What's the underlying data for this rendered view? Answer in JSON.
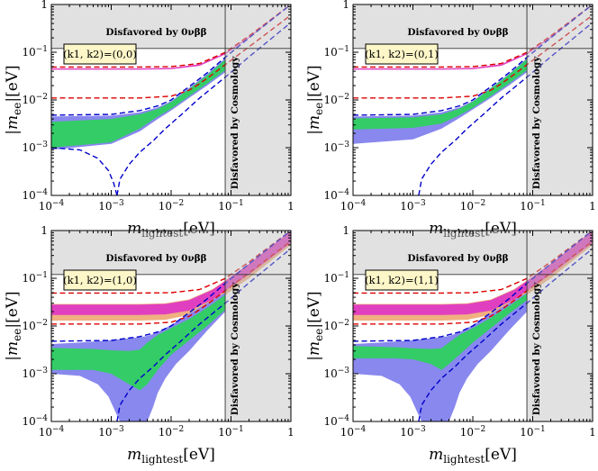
{
  "chart_data": [
    {
      "type": "area",
      "panel_label": "(k1, k2)=(0,0)",
      "xlabel": "m_lightest[eV]",
      "ylabel": "|m_ee|[eV]",
      "xscale": "log",
      "yscale": "log",
      "xlim": [
        0.0001,
        1
      ],
      "ylim": [
        0.0001,
        1
      ],
      "x_ticks": [
        "10^-4",
        "10^-3",
        "10^-2",
        "10^-1",
        "1"
      ],
      "y_ticks": [
        "10^-4",
        "10^-3",
        "10^-2",
        "10^-1",
        "1"
      ],
      "annotations": [
        "Disfavored by 0νββ",
        "Disfavored by Cosmology"
      ],
      "excluded_mee_above": 0.12,
      "excluded_mlightest_above": 0.08,
      "bands": [
        {
          "color": "#e040c0",
          "x": [
            0.0001,
            0.003,
            0.01,
            0.03,
            0.08,
            0.2,
            1
          ],
          "lower": [
            0.043,
            0.043,
            0.044,
            0.052,
            0.09,
            0.2,
            1.0
          ],
          "upper": [
            0.046,
            0.046,
            0.047,
            0.056,
            0.096,
            0.21,
            1.0
          ]
        },
        {
          "color": "#8888ee",
          "x": [
            0.0001,
            0.001,
            0.003,
            0.006,
            0.01,
            0.02,
            0.04,
            0.08
          ],
          "lower": [
            0.0009,
            0.0012,
            0.0022,
            0.004,
            0.006,
            0.011,
            0.02,
            0.038
          ],
          "upper": [
            0.0045,
            0.0047,
            0.0055,
            0.007,
            0.0095,
            0.018,
            0.035,
            0.075
          ]
        },
        {
          "color": "#33cc66",
          "x": [
            0.0001,
            0.001,
            0.003,
            0.006,
            0.01,
            0.02,
            0.04,
            0.08
          ],
          "lower": [
            0.001,
            0.0013,
            0.0025,
            0.0045,
            0.0065,
            0.012,
            0.022,
            0.042
          ],
          "upper": [
            0.0035,
            0.004,
            0.005,
            0.0065,
            0.009,
            0.017,
            0.033,
            0.07
          ]
        }
      ],
      "dashed_curves": [
        {
          "color": "#dd0000",
          "x": [
            0.0001,
            0.003,
            0.01,
            0.03,
            0.08,
            0.2,
            1
          ],
          "y": [
            0.049,
            0.049,
            0.05,
            0.058,
            0.099,
            0.22,
            1.0
          ]
        },
        {
          "color": "#dd0000",
          "x": [
            0.0001,
            0.003,
            0.01,
            0.02,
            0.03,
            0.05,
            0.08,
            0.2,
            1
          ],
          "y": [
            0.011,
            0.011,
            0.012,
            0.016,
            0.022,
            0.035,
            0.055,
            0.13,
            0.6
          ]
        },
        {
          "color": "#0000cc",
          "x": [
            0.0001,
            0.001,
            0.003,
            0.006,
            0.01,
            0.02,
            0.04,
            0.08,
            0.2,
            1
          ],
          "y": [
            0.0048,
            0.005,
            0.006,
            0.0075,
            0.01,
            0.019,
            0.037,
            0.078,
            0.2,
            1.0
          ]
        },
        {
          "color": "#0000cc",
          "x": [
            0.0001,
            0.0003,
            0.0006,
            0.0009,
            0.0011,
            0.00125
          ],
          "y": [
            0.001,
            0.0009,
            0.0006,
            0.00033,
            0.00018,
            0.0001
          ]
        },
        {
          "color": "#0000cc",
          "x": [
            0.00125,
            0.0014,
            0.002,
            0.003,
            0.005,
            0.008,
            0.015,
            0.03,
            0.08,
            0.2,
            1
          ],
          "y": [
            0.0001,
            0.00022,
            0.00045,
            0.0008,
            0.0014,
            0.0025,
            0.005,
            0.011,
            0.03,
            0.08,
            0.42
          ]
        }
      ]
    },
    {
      "type": "area",
      "panel_label": "(k1, k2)=(0,1)",
      "xlabel": "m_lightest[eV]",
      "ylabel": "|m_ee|[eV]",
      "xscale": "log",
      "yscale": "log",
      "xlim": [
        0.0001,
        1
      ],
      "ylim": [
        0.0001,
        1
      ],
      "x_ticks": [
        "10^-4",
        "10^-3",
        "10^-2",
        "10^-1",
        "1"
      ],
      "y_ticks": [
        "10^-4",
        "10^-3",
        "10^-2",
        "10^-1",
        "1"
      ],
      "annotations": [
        "Disfavored by 0νββ",
        "Disfavored by Cosmology"
      ],
      "excluded_mee_above": 0.12,
      "excluded_mlightest_above": 0.08,
      "bands": [
        {
          "color": "#e040c0",
          "x": [
            0.0001,
            0.003,
            0.01,
            0.03,
            0.08,
            0.2,
            1
          ],
          "lower": [
            0.043,
            0.043,
            0.044,
            0.052,
            0.09,
            0.2,
            1.0
          ],
          "upper": [
            0.046,
            0.046,
            0.047,
            0.056,
            0.096,
            0.21,
            1.0
          ]
        },
        {
          "color": "#8888ee",
          "x": [
            0.0001,
            0.001,
            0.003,
            0.006,
            0.01,
            0.02,
            0.04,
            0.08
          ],
          "lower": [
            0.0012,
            0.0015,
            0.0025,
            0.0042,
            0.0063,
            0.011,
            0.02,
            0.038
          ],
          "upper": [
            0.0045,
            0.0047,
            0.0055,
            0.007,
            0.0095,
            0.018,
            0.035,
            0.075
          ]
        },
        {
          "color": "#33cc66",
          "x": [
            0.0001,
            0.001,
            0.003,
            0.006,
            0.01,
            0.02,
            0.04,
            0.08
          ],
          "lower": [
            0.0024,
            0.0026,
            0.0032,
            0.0048,
            0.0068,
            0.012,
            0.022,
            0.042
          ],
          "upper": [
            0.0041,
            0.0043,
            0.005,
            0.0066,
            0.0092,
            0.0175,
            0.034,
            0.072
          ]
        }
      ],
      "dashed_curves": [
        {
          "color": "#dd0000",
          "x": [
            0.0001,
            0.003,
            0.01,
            0.03,
            0.08,
            0.2,
            1
          ],
          "y": [
            0.049,
            0.049,
            0.05,
            0.058,
            0.099,
            0.22,
            1.0
          ]
        },
        {
          "color": "#dd0000",
          "x": [
            0.0001,
            0.003,
            0.01,
            0.02,
            0.03,
            0.05,
            0.08,
            0.2,
            1
          ],
          "y": [
            0.011,
            0.011,
            0.012,
            0.016,
            0.022,
            0.035,
            0.055,
            0.13,
            0.6
          ]
        },
        {
          "color": "#0000cc",
          "x": [
            0.0001,
            0.001,
            0.003,
            0.006,
            0.01,
            0.02,
            0.04,
            0.08,
            0.2,
            1
          ],
          "y": [
            0.0048,
            0.005,
            0.006,
            0.0075,
            0.01,
            0.019,
            0.037,
            0.078,
            0.2,
            1.0
          ]
        },
        {
          "color": "#0000cc",
          "x": [
            0.00125,
            0.0014,
            0.002,
            0.003,
            0.005,
            0.008,
            0.015,
            0.03,
            0.08,
            0.2,
            1
          ],
          "y": [
            0.0001,
            0.00022,
            0.00045,
            0.0008,
            0.0014,
            0.0025,
            0.005,
            0.011,
            0.03,
            0.08,
            0.42
          ]
        }
      ]
    },
    {
      "type": "area",
      "panel_label": "(k1, k2)=(1,0)",
      "xlabel": "m_lightest[eV]",
      "ylabel": "|m_ee|[eV]",
      "xscale": "log",
      "yscale": "log",
      "xlim": [
        0.0001,
        1
      ],
      "ylim": [
        0.0001,
        1
      ],
      "x_ticks": [
        "10^-4",
        "10^-3",
        "10^-2",
        "10^-1",
        "1"
      ],
      "y_ticks": [
        "10^-4",
        "10^-3",
        "10^-2",
        "10^-1",
        "1"
      ],
      "annotations": [
        "Disfavored by 0νββ",
        "Disfavored by Cosmology"
      ],
      "excluded_mee_above": 0.12,
      "excluded_mlightest_above": 0.08,
      "bands": [
        {
          "color": "#f0b080",
          "x": [
            0.0001,
            0.003,
            0.008,
            0.02,
            0.05,
            0.08,
            0.2,
            1
          ],
          "lower": [
            0.013,
            0.013,
            0.0135,
            0.017,
            0.03,
            0.045,
            0.1,
            0.5
          ],
          "upper": [
            0.029,
            0.029,
            0.03,
            0.036,
            0.06,
            0.09,
            0.2,
            1.0
          ]
        },
        {
          "color": "#e040c0",
          "x": [
            0.0001,
            0.003,
            0.008,
            0.02,
            0.05,
            0.08,
            0.2,
            1
          ],
          "lower": [
            0.017,
            0.017,
            0.0175,
            0.021,
            0.036,
            0.055,
            0.12,
            0.55
          ],
          "upper": [
            0.028,
            0.028,
            0.029,
            0.035,
            0.058,
            0.088,
            0.2,
            1.0
          ]
        },
        {
          "color": "#8888ee",
          "x": [
            0.0001,
            0.0003,
            0.0006,
            0.0009,
            0.0012,
            0.0014,
            0.003,
            0.004,
            0.005,
            0.006,
            0.008,
            0.012,
            0.02,
            0.04,
            0.08
          ],
          "lower": [
            0.001,
            0.0009,
            0.0006,
            0.00033,
            0.00015,
            0.0001,
            0.0001,
            0.0001,
            0.0002,
            0.0004,
            0.0008,
            0.0016,
            0.003,
            0.008,
            0.02
          ],
          "upper": [
            0.0042,
            0.0045,
            0.0048,
            0.005,
            0.0052,
            0.0053,
            0.0058,
            0.0062,
            0.0068,
            0.0074,
            0.009,
            0.012,
            0.018,
            0.03,
            0.05
          ]
        },
        {
          "color": "#33cc66",
          "x": [
            0.0001,
            0.0005,
            0.001,
            0.002,
            0.003,
            0.004,
            0.006,
            0.01,
            0.02,
            0.04,
            0.08
          ],
          "lower": [
            0.0012,
            0.0012,
            0.001,
            0.0006,
            0.00045,
            0.0006,
            0.0012,
            0.0025,
            0.005,
            0.01,
            0.022
          ],
          "upper": [
            0.0035,
            0.0033,
            0.0031,
            0.003,
            0.0032,
            0.0045,
            0.0065,
            0.009,
            0.014,
            0.024,
            0.045
          ]
        }
      ],
      "dashed_curves": [
        {
          "color": "#dd0000",
          "x": [
            0.0001,
            0.003,
            0.01,
            0.03,
            0.08,
            0.2,
            1
          ],
          "y": [
            0.049,
            0.049,
            0.05,
            0.058,
            0.099,
            0.22,
            1.0
          ]
        },
        {
          "color": "#dd0000",
          "x": [
            0.0001,
            0.003,
            0.01,
            0.02,
            0.03,
            0.05,
            0.08,
            0.2,
            1
          ],
          "y": [
            0.011,
            0.011,
            0.012,
            0.016,
            0.022,
            0.035,
            0.055,
            0.13,
            0.6
          ]
        },
        {
          "color": "#0000cc",
          "x": [
            0.0001,
            0.001,
            0.003,
            0.006,
            0.01,
            0.02,
            0.04,
            0.08,
            0.2,
            1
          ],
          "y": [
            0.0048,
            0.005,
            0.006,
            0.0075,
            0.01,
            0.019,
            0.037,
            0.078,
            0.2,
            1.0
          ]
        },
        {
          "color": "#0000cc",
          "x": [
            0.00125,
            0.0014,
            0.002,
            0.003,
            0.005,
            0.008,
            0.015,
            0.03,
            0.08,
            0.2,
            1
          ],
          "y": [
            0.0001,
            0.00022,
            0.00045,
            0.0008,
            0.0014,
            0.0025,
            0.005,
            0.011,
            0.03,
            0.08,
            0.42
          ]
        }
      ]
    },
    {
      "type": "area",
      "panel_label": "(k1, k2)=(1,1)",
      "xlabel": "m_lightest[eV]",
      "ylabel": "|m_ee|[eV]",
      "xscale": "log",
      "yscale": "log",
      "xlim": [
        0.0001,
        1
      ],
      "ylim": [
        0.0001,
        1
      ],
      "x_ticks": [
        "10^-4",
        "10^-3",
        "10^-2",
        "10^-1",
        "1"
      ],
      "y_ticks": [
        "10^-4",
        "10^-3",
        "10^-2",
        "10^-1",
        "1"
      ],
      "annotations": [
        "Disfavored by 0νββ",
        "Disfavored by Cosmology"
      ],
      "excluded_mee_above": 0.12,
      "excluded_mlightest_above": 0.08,
      "bands": [
        {
          "color": "#f0b080",
          "x": [
            0.0001,
            0.003,
            0.008,
            0.02,
            0.05,
            0.08,
            0.2,
            1
          ],
          "lower": [
            0.013,
            0.013,
            0.0135,
            0.017,
            0.03,
            0.045,
            0.1,
            0.5
          ],
          "upper": [
            0.029,
            0.029,
            0.03,
            0.036,
            0.06,
            0.09,
            0.2,
            1.0
          ]
        },
        {
          "color": "#e040c0",
          "x": [
            0.0001,
            0.003,
            0.008,
            0.02,
            0.05,
            0.08,
            0.2,
            1
          ],
          "lower": [
            0.017,
            0.017,
            0.0175,
            0.021,
            0.036,
            0.055,
            0.12,
            0.55
          ],
          "upper": [
            0.028,
            0.028,
            0.029,
            0.035,
            0.058,
            0.088,
            0.2,
            1.0
          ]
        },
        {
          "color": "#8888ee",
          "x": [
            0.0001,
            0.0003,
            0.0006,
            0.0009,
            0.0012,
            0.0014,
            0.003,
            0.004,
            0.005,
            0.006,
            0.008,
            0.012,
            0.02,
            0.04,
            0.08
          ],
          "lower": [
            0.001,
            0.0009,
            0.0006,
            0.00033,
            0.00015,
            0.0001,
            0.0001,
            0.0001,
            0.0002,
            0.0004,
            0.0008,
            0.0016,
            0.003,
            0.008,
            0.02
          ],
          "upper": [
            0.0042,
            0.0045,
            0.0048,
            0.005,
            0.0052,
            0.0053,
            0.0058,
            0.0062,
            0.0068,
            0.0074,
            0.009,
            0.012,
            0.018,
            0.03,
            0.05
          ]
        },
        {
          "color": "#33cc66",
          "x": [
            0.0001,
            0.0005,
            0.001,
            0.002,
            0.003,
            0.004,
            0.006,
            0.01,
            0.02,
            0.04,
            0.08
          ],
          "lower": [
            0.0021,
            0.0021,
            0.002,
            0.0016,
            0.0012,
            0.0016,
            0.0025,
            0.0045,
            0.009,
            0.018,
            0.035
          ],
          "upper": [
            0.0038,
            0.0036,
            0.0034,
            0.0033,
            0.0034,
            0.0045,
            0.0065,
            0.009,
            0.015,
            0.026,
            0.048
          ]
        }
      ],
      "dashed_curves": [
        {
          "color": "#dd0000",
          "x": [
            0.0001,
            0.003,
            0.01,
            0.03,
            0.08,
            0.2,
            1
          ],
          "y": [
            0.049,
            0.049,
            0.05,
            0.058,
            0.099,
            0.22,
            1.0
          ]
        },
        {
          "color": "#dd0000",
          "x": [
            0.0001,
            0.003,
            0.01,
            0.02,
            0.03,
            0.05,
            0.08,
            0.2,
            1
          ],
          "y": [
            0.011,
            0.011,
            0.012,
            0.016,
            0.022,
            0.035,
            0.055,
            0.13,
            0.6
          ]
        },
        {
          "color": "#0000cc",
          "x": [
            0.0001,
            0.001,
            0.003,
            0.006,
            0.01,
            0.02,
            0.04,
            0.08,
            0.2,
            1
          ],
          "y": [
            0.0048,
            0.005,
            0.006,
            0.0075,
            0.01,
            0.019,
            0.037,
            0.078,
            0.2,
            1.0
          ]
        },
        {
          "color": "#0000cc",
          "x": [
            0.00125,
            0.0014,
            0.002,
            0.003,
            0.005,
            0.008,
            0.015,
            0.03,
            0.08,
            0.2,
            1
          ],
          "y": [
            0.0001,
            0.00022,
            0.00045,
            0.0008,
            0.0014,
            0.0025,
            0.005,
            0.011,
            0.03,
            0.08,
            0.42
          ]
        }
      ]
    }
  ]
}
